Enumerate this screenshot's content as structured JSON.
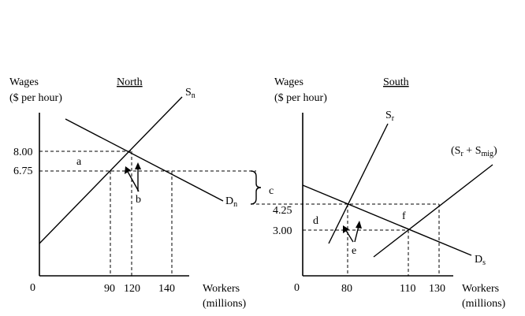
{
  "chart_data": [
    {
      "type": "line",
      "title": "North",
      "ylabel_line1": "Wages",
      "ylabel_line2": "($ per hour)",
      "xlabel_line1": "Workers",
      "xlabel_line2": "(millions)",
      "origin_label": "0",
      "y_ticks": [
        "8.00",
        "6.75"
      ],
      "x_ticks": [
        "90",
        "120",
        "140"
      ],
      "series": [
        {
          "name": "Sn",
          "label_main": "S",
          "label_sub": "n",
          "points": [
            [
              0,
              5.17
            ],
            [
              120,
              8.0
            ],
            [
              190,
              9.79
            ]
          ]
        },
        {
          "name": "Dn",
          "label_main": "D",
          "label_sub": "n",
          "points": [
            [
              15,
              8.73
            ],
            [
              120,
              8.0
            ],
            [
              140,
              6.75
            ],
            [
              235,
              5.86
            ]
          ]
        }
      ],
      "annotations": [
        "a",
        "b",
        "c"
      ]
    },
    {
      "type": "line",
      "title": "South",
      "ylabel_line1": "Wages",
      "ylabel_line2": "($ per hour)",
      "xlabel_line1": "Workers",
      "xlabel_line2": "(millions)",
      "origin_label": "0",
      "y_ticks": [
        "4.25",
        "3.00"
      ],
      "x_ticks": [
        "80",
        "110",
        "130"
      ],
      "series": [
        {
          "name": "Sr",
          "label_main": "S",
          "label_sub": "r",
          "points": [
            [
              60,
              2.62
            ],
            [
              80,
              4.25
            ],
            [
              165,
              11.3
            ]
          ]
        },
        {
          "name": "Sr + Smig",
          "label": "(Sᵣ + Sₘᵢg)",
          "label_parts": [
            "(S",
            "r",
            " + S",
            "mig",
            ")"
          ],
          "points": [
            [
              85,
              2.0
            ],
            [
              110,
              3.0
            ],
            [
              130,
              4.25
            ],
            [
              165,
              7.1
            ]
          ]
        },
        {
          "name": "Ds",
          "label_main": "D",
          "label_sub": "s",
          "points": [
            [
              0,
              5.3
            ],
            [
              80,
              4.25
            ],
            [
              110,
              3.0
            ],
            [
              160,
              1.6
            ]
          ]
        }
      ],
      "annotations": [
        "d",
        "e",
        "f"
      ]
    }
  ]
}
